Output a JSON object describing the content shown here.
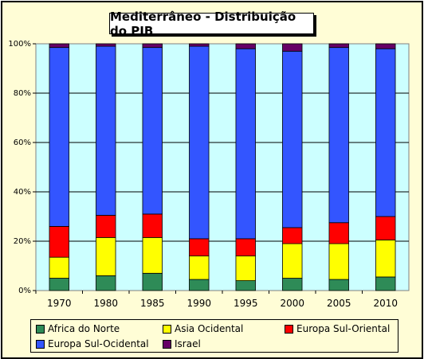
{
  "chart_data": {
    "type": "bar",
    "stacked": "percent",
    "title": "Mediterrâneo - Distribuição do PIB",
    "categories": [
      "1970",
      "1980",
      "1985",
      "1990",
      "1995",
      "2000",
      "2005",
      "2010"
    ],
    "ylim": [
      0,
      100
    ],
    "yticks": [
      "0%",
      "20%",
      "40%",
      "60%",
      "80%",
      "100%"
    ],
    "grid": true,
    "legend_position": "bottom",
    "series": [
      {
        "name": "Africa do Norte",
        "color": "#2e8b57",
        "values": [
          5,
          6,
          7,
          4.5,
          4,
          5,
          4.5,
          5.5
        ]
      },
      {
        "name": "Asia Ocidental",
        "color": "#ffff00",
        "values": [
          8.5,
          15.5,
          14.5,
          9.5,
          10,
          14,
          14.5,
          15
        ]
      },
      {
        "name": "Europa Sul-Oriental",
        "color": "#ff0000",
        "values": [
          12.5,
          9,
          9.5,
          7,
          7,
          6.5,
          8.5,
          9.5
        ]
      },
      {
        "name": "Europa Sul-Ocidental",
        "color": "#3355ff",
        "values": [
          72.5,
          68.5,
          67.5,
          78,
          77,
          71.5,
          71,
          68
        ]
      },
      {
        "name": "Israel",
        "color": "#660066",
        "values": [
          1.5,
          1,
          1.5,
          1,
          2,
          3,
          1.5,
          2
        ]
      }
    ]
  }
}
